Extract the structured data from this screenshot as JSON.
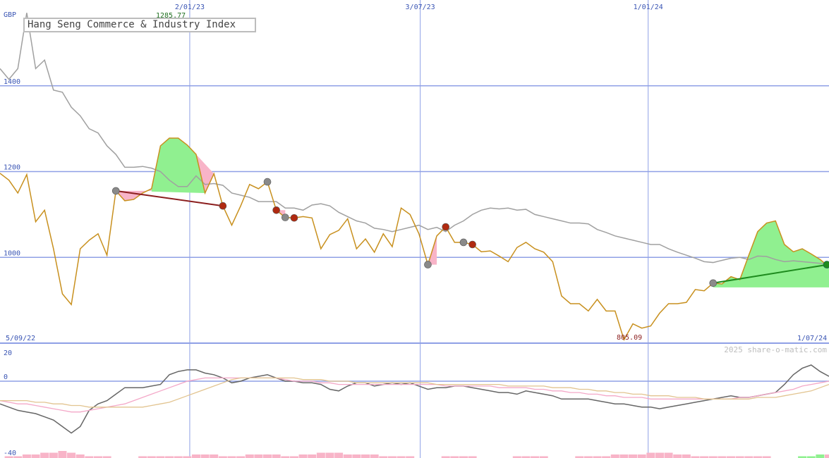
{
  "colors": {
    "price": "#c8901e",
    "moving_average": "#a0a0a0",
    "grid": "#8fa0e6",
    "axis_text": "#3a55b4",
    "gain_fill": "#90f090",
    "loss_fill": "#f8b4c8",
    "high_label": "#207020",
    "low_label": "#8b1e1e",
    "osc_dark": "#666666",
    "osc_pink": "#f4a8c8",
    "osc_tan": "#e2c490",
    "volume": "#f8b4c8",
    "volume_up": "#90f090"
  },
  "chart_data": [
    {
      "type": "line",
      "title": "Hang Seng Commerce & Industry Index",
      "unit_label": "GBP",
      "x_tick_labels": [
        "2/01/23",
        "3/07/23",
        "1/01/24"
      ],
      "x_tick_positions_days": [
        149,
        330,
        509
      ],
      "start_date_label": "5/09/22",
      "end_date_label": "1/07/24",
      "y_ticks": [
        1000,
        1200,
        1400
      ],
      "ylim": [
        800,
        1600
      ],
      "annotations": {
        "high": "1285.77",
        "low": "805.09"
      },
      "x_days": [
        0,
        7,
        14,
        21,
        28,
        35,
        42,
        49,
        56,
        63,
        70,
        77,
        84,
        91,
        98,
        105,
        112,
        119,
        126,
        133,
        140,
        147,
        154,
        161,
        168,
        175,
        182,
        189,
        196,
        203,
        210,
        217,
        224,
        231,
        238,
        245,
        252,
        259,
        266,
        273,
        280,
        287,
        294,
        301,
        308,
        315,
        322,
        329,
        336,
        343,
        350,
        357,
        364,
        371,
        378,
        385,
        392,
        399,
        406,
        413,
        420,
        427,
        434,
        441,
        448,
        455,
        462,
        469,
        476,
        483,
        490,
        497,
        504,
        511,
        518,
        525,
        532,
        539,
        546,
        553,
        560,
        567,
        574,
        581,
        588,
        595,
        602,
        609,
        616,
        623,
        630,
        637,
        644,
        651
      ],
      "series": [
        {
          "values": [
            1196,
            1180,
            1150,
            1193,
            1083,
            1110,
            1020,
            915,
            890,
            1020,
            1040,
            1055,
            1005,
            1155,
            1132,
            1135,
            1150,
            1160,
            1260,
            1278,
            1278,
            1262,
            1240,
            1150,
            1195,
            1120,
            1075,
            1120,
            1170,
            1160,
            1176,
            1110,
            1093,
            1092,
            1095,
            1092,
            1020,
            1053,
            1063,
            1090,
            1020,
            1043,
            1012,
            1055,
            1025,
            1115,
            1100,
            1055,
            983,
            1050,
            1071,
            1035,
            1035,
            1030,
            1013,
            1015,
            1003,
            990,
            1023,
            1035,
            1020,
            1012,
            990,
            910,
            892,
            892,
            875,
            902,
            875,
            875,
            808,
            845,
            835,
            840,
            870,
            892,
            892,
            895,
            925,
            922,
            940,
            938,
            955,
            948,
            1005,
            1060,
            1080,
            1085,
            1030,
            1013,
            1020,
            1008,
            995,
            978
          ]
        },
        {
          "values": [
            1440,
            1415,
            1440,
            1570,
            1440,
            1460,
            1390,
            1385,
            1350,
            1330,
            1300,
            1290,
            1260,
            1240,
            1210,
            1210,
            1212,
            1208,
            1200,
            1180,
            1165,
            1165,
            1190,
            1170,
            1172,
            1168,
            1150,
            1145,
            1140,
            1130,
            1130,
            1130,
            1115,
            1115,
            1110,
            1122,
            1125,
            1120,
            1105,
            1095,
            1085,
            1080,
            1068,
            1065,
            1060,
            1065,
            1070,
            1075,
            1065,
            1070,
            1060,
            1075,
            1085,
            1100,
            1110,
            1115,
            1113,
            1115,
            1110,
            1112,
            1100,
            1095,
            1090,
            1085,
            1080,
            1080,
            1078,
            1065,
            1058,
            1050,
            1045,
            1040,
            1035,
            1030,
            1030,
            1020,
            1012,
            1005,
            998,
            990,
            988,
            993,
            998,
            1000,
            995,
            1003,
            1002,
            995,
            990,
            992,
            990,
            988,
            986,
            985
          ]
        }
      ]
    },
    {
      "type": "line",
      "title": "",
      "y_ticks": [
        20,
        0,
        -40
      ],
      "ylim": [
        -40,
        20
      ],
      "copyright": "2025 share-o-matic.com",
      "series": [
        {
          "values": [
            -14,
            -16,
            -18,
            -19,
            -20,
            -22,
            -24,
            -28,
            -32,
            -28,
            -18,
            -14,
            -12,
            -8,
            -4,
            -4,
            -4,
            -3,
            -2,
            4,
            6,
            7,
            7,
            5,
            4,
            2,
            -1,
            0,
            2,
            3,
            4,
            2,
            0,
            0,
            -1,
            -1,
            -2,
            -5,
            -6,
            -3,
            -1,
            -1,
            -3,
            -2,
            -1,
            -2,
            -1,
            -3,
            -5,
            -4,
            -4,
            -3,
            -3,
            -4,
            -5,
            -6,
            -7,
            -7,
            -8,
            -6,
            -7,
            -8,
            -9,
            -11,
            -11,
            -11,
            -11,
            -12,
            -13,
            -14,
            -14,
            -15,
            -16,
            -16,
            -17,
            -16,
            -15,
            -14,
            -13,
            -12,
            -11,
            -10,
            -9,
            -10,
            -10,
            -9,
            -8,
            -7,
            -2,
            4,
            8,
            10,
            6,
            3
          ]
        },
        {
          "values": [
            -12,
            -13,
            -14,
            -14,
            -15,
            -16,
            -17,
            -18,
            -19,
            -19,
            -18,
            -17,
            -16,
            -15,
            -14,
            -12,
            -10,
            -8,
            -6,
            -4,
            -2,
            0,
            1,
            2,
            2,
            2,
            2,
            2,
            2,
            2,
            2,
            2,
            1,
            0,
            0,
            0,
            -1,
            -1,
            -2,
            -2,
            -2,
            -2,
            -2,
            -2,
            -2,
            -2,
            -2,
            -2,
            -2,
            -2,
            -3,
            -3,
            -3,
            -3,
            -3,
            -3,
            -4,
            -4,
            -4,
            -4,
            -5,
            -5,
            -6,
            -6,
            -7,
            -7,
            -8,
            -8,
            -9,
            -9,
            -10,
            -10,
            -10,
            -11,
            -11,
            -11,
            -11,
            -11,
            -11,
            -11,
            -11,
            -11,
            -11,
            -10,
            -10,
            -9,
            -8,
            -7,
            -6,
            -5,
            -3,
            -2,
            -1,
            0
          ]
        },
        {
          "values": [
            -12,
            -12,
            -12,
            -12,
            -13,
            -13,
            -14,
            -14,
            -15,
            -15,
            -16,
            -16,
            -16,
            -16,
            -16,
            -16,
            -16,
            -15,
            -14,
            -13,
            -11,
            -9,
            -7,
            -5,
            -3,
            -1,
            1,
            2,
            2,
            2,
            2,
            2,
            2,
            2,
            1,
            1,
            1,
            0,
            0,
            0,
            -1,
            -1,
            -1,
            -1,
            -1,
            -1,
            -1,
            -1,
            -1,
            -2,
            -2,
            -2,
            -2,
            -2,
            -2,
            -2,
            -2,
            -3,
            -3,
            -3,
            -3,
            -3,
            -4,
            -4,
            -4,
            -5,
            -5,
            -6,
            -6,
            -7,
            -7,
            -8,
            -8,
            -9,
            -9,
            -9,
            -10,
            -10,
            -10,
            -11,
            -11,
            -11,
            -11,
            -11,
            -11,
            -10,
            -10,
            -10,
            -9,
            -8,
            -7,
            -6,
            -4,
            -2
          ]
        }
      ],
      "volume": [
        0,
        1,
        1,
        2,
        2,
        3,
        3,
        4,
        3,
        2,
        1,
        1,
        1,
        0,
        0,
        0,
        1,
        1,
        1,
        1,
        1,
        1,
        2,
        2,
        2,
        1,
        1,
        1,
        2,
        2,
        2,
        2,
        1,
        1,
        2,
        2,
        3,
        3,
        3,
        2,
        2,
        2,
        2,
        1,
        1,
        1,
        1,
        0,
        0,
        0,
        1,
        1,
        1,
        1,
        0,
        0,
        0,
        0,
        1,
        1,
        1,
        1,
        0,
        0,
        0,
        1,
        1,
        1,
        1,
        2,
        2,
        2,
        2,
        3,
        3,
        3,
        2,
        2,
        1,
        1,
        1,
        1,
        1,
        1,
        1,
        1,
        1,
        0,
        0,
        0,
        1,
        1,
        2,
        2
      ]
    }
  ]
}
